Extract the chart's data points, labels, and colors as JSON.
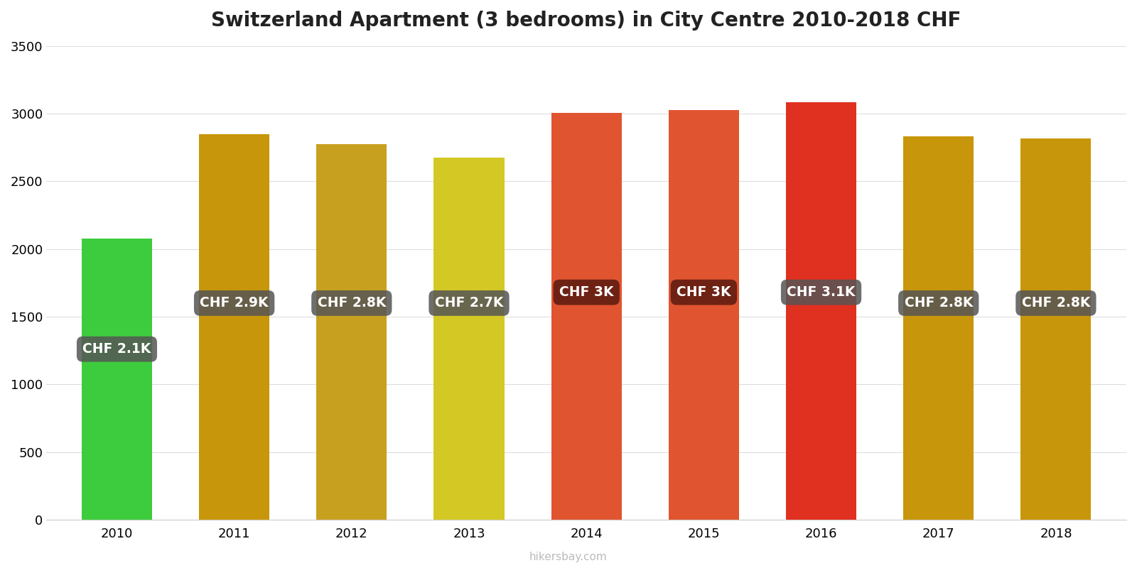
{
  "title": "Switzerland Apartment (3 bedrooms) in City Centre 2010-2018 CHF",
  "years": [
    2010,
    2011,
    2012,
    2013,
    2014,
    2015,
    2016,
    2017,
    2018
  ],
  "values": [
    2075,
    2850,
    2775,
    2675,
    3005,
    3025,
    3085,
    2835,
    2815
  ],
  "bar_colors": [
    "#3dcc3d",
    "#c8960a",
    "#c8a020",
    "#d4c825",
    "#e05530",
    "#e05530",
    "#e03020",
    "#c8960a",
    "#c8960a"
  ],
  "labels": [
    "CHF 2.1K",
    "CHF 2.9K",
    "CHF 2.8K",
    "CHF 2.7K",
    "CHF 3K",
    "CHF 3K",
    "CHF 3.1K",
    "CHF 2.8K",
    "CHF 2.8K"
  ],
  "label_box_colors": [
    "#555555",
    "#555555",
    "#555555",
    "#555555",
    "#5a1a10",
    "#5a1a10",
    "#555555",
    "#555555",
    "#555555"
  ],
  "ylim": [
    0,
    3500
  ],
  "yticks": [
    0,
    500,
    1000,
    1500,
    2000,
    2500,
    3000,
    3500
  ],
  "label_y_positions": [
    1260,
    1600,
    1600,
    1600,
    1680,
    1680,
    1680,
    1600,
    1600
  ],
  "watermark": "hikersbay.com",
  "background_color": "#ffffff",
  "grid_color": "#dddddd",
  "title_fontsize": 20,
  "bar_width": 0.6
}
